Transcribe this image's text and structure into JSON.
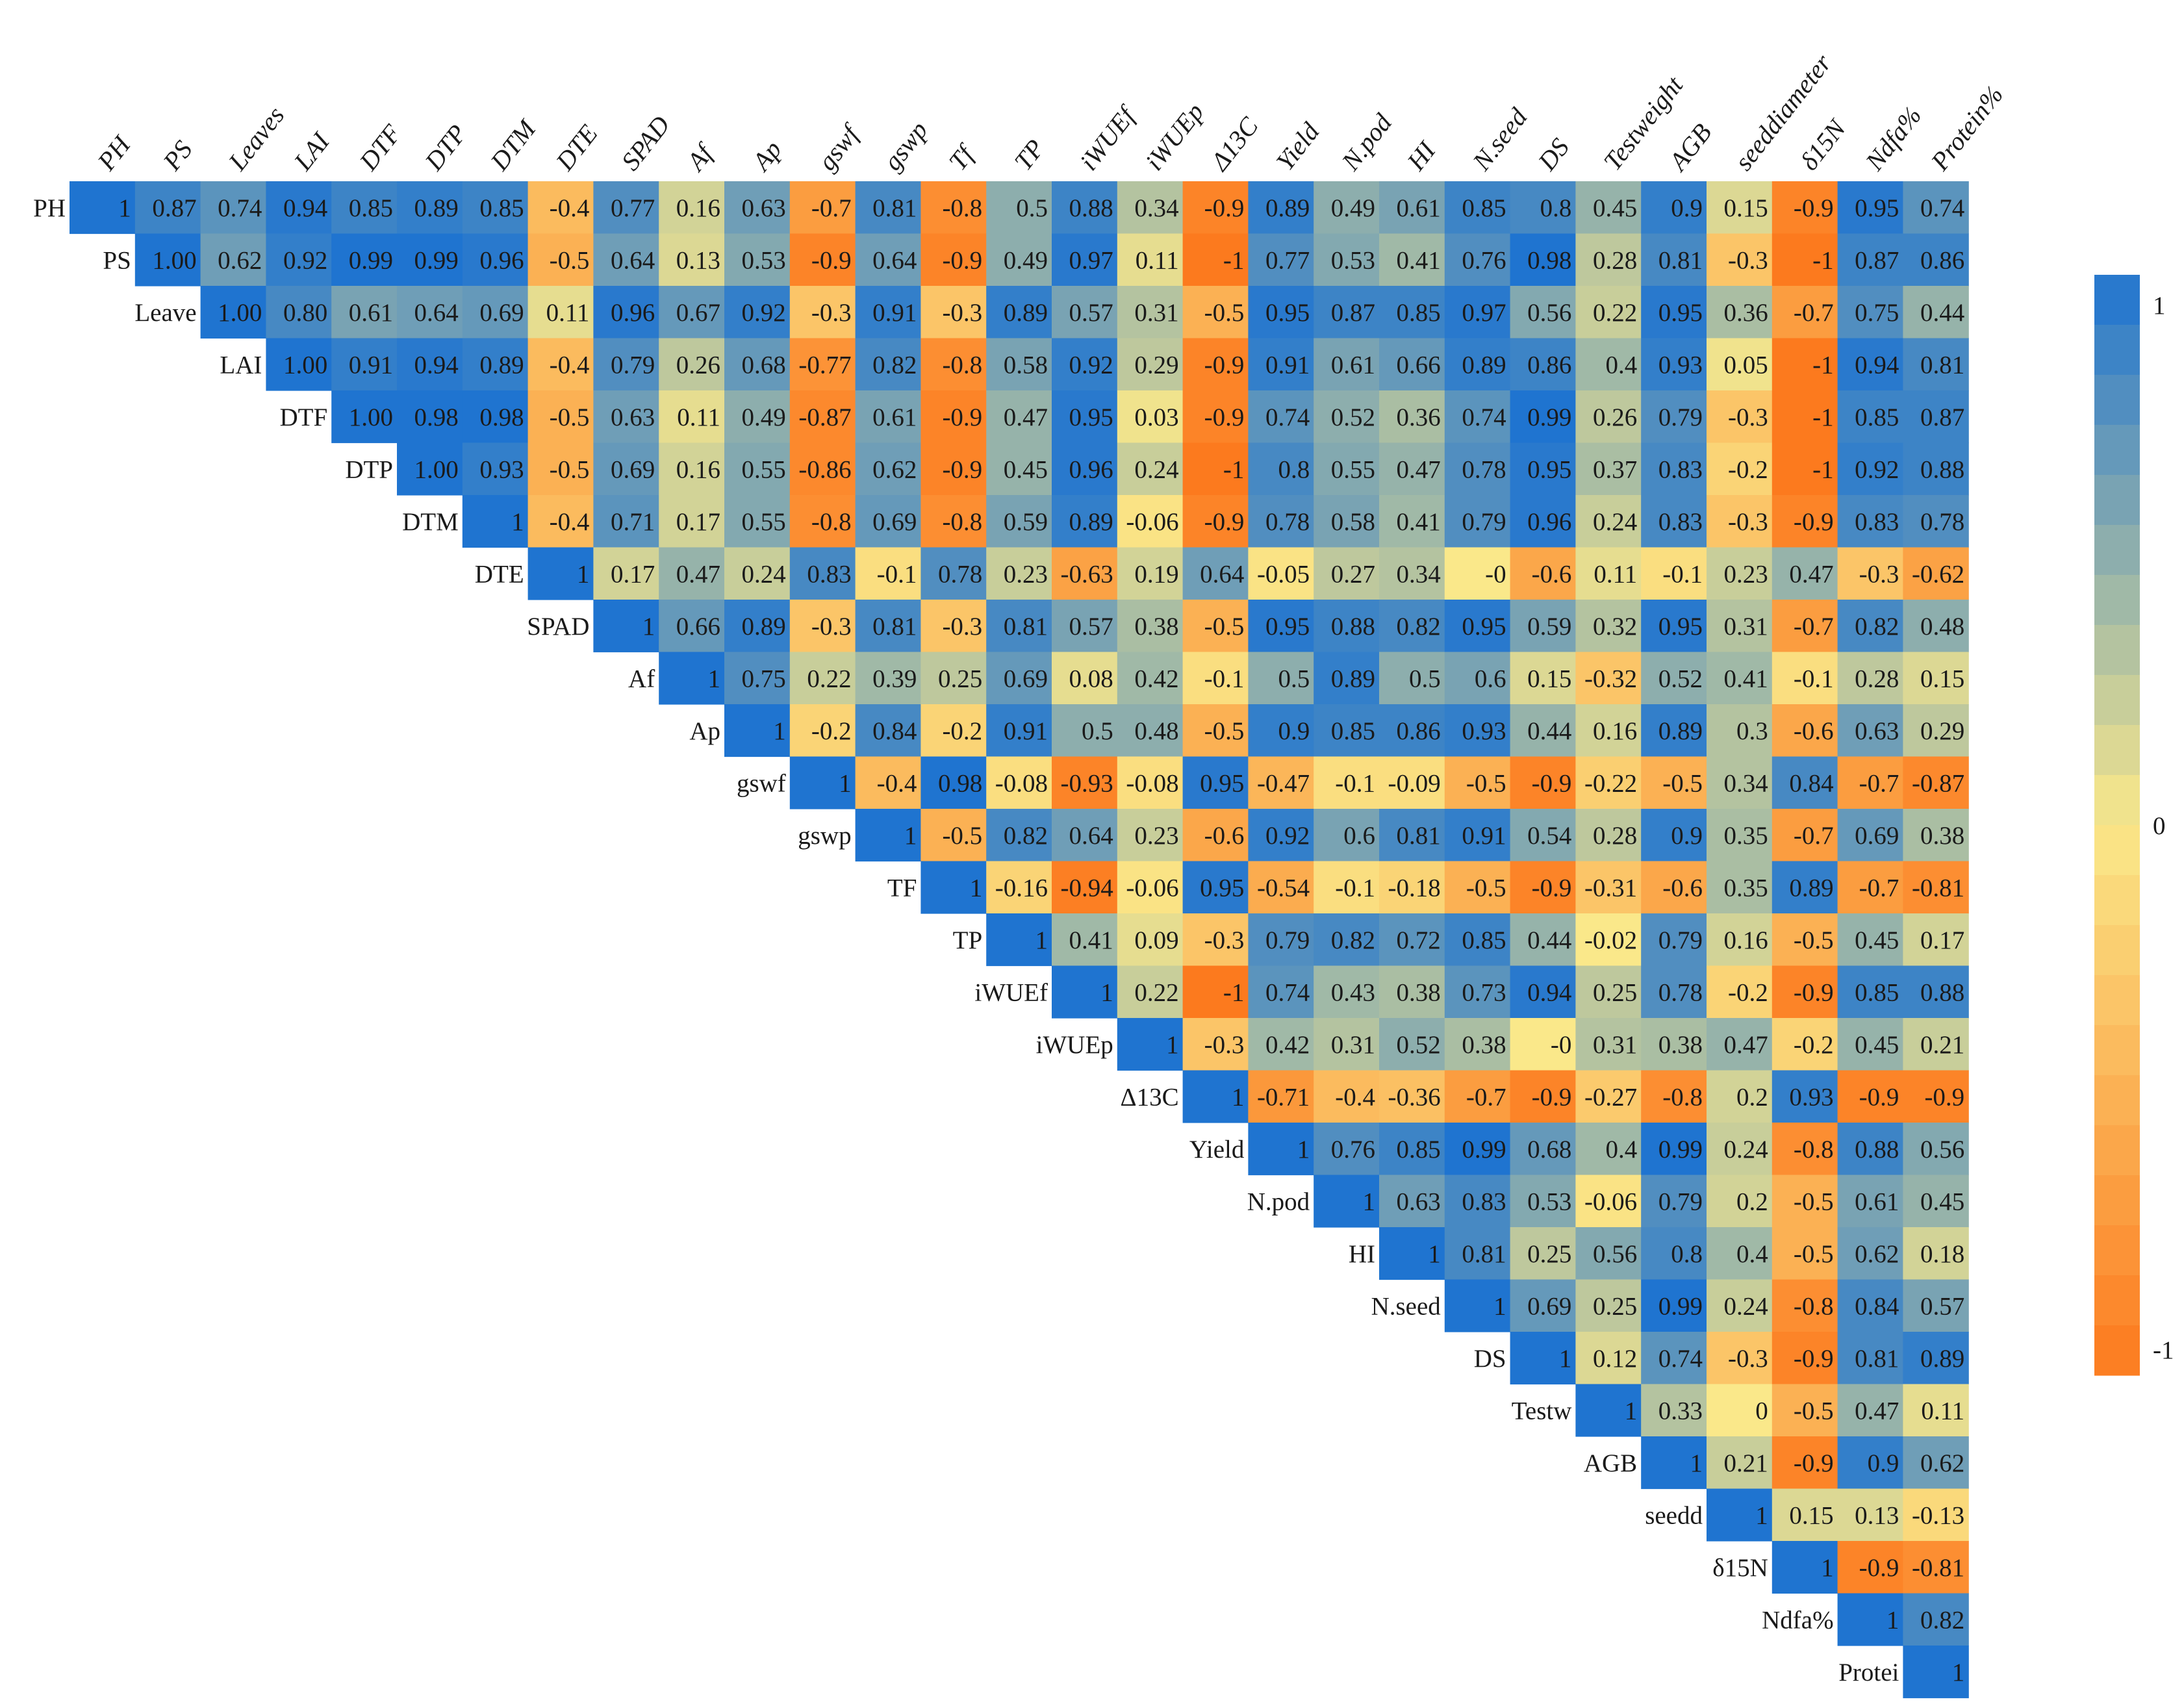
{
  "chart_data": {
    "type": "heatmap",
    "title": "",
    "column_labels": [
      "PH",
      "PS",
      "Leaves",
      "LAI",
      "DTF",
      "DTP",
      "DTM",
      "DTE",
      "SPAD",
      "Af",
      "Ap",
      "gswf",
      "gswp",
      "Tf",
      "TP",
      "iWUEf",
      "iWUEp",
      "Δ13C",
      "Yield",
      "N.pod",
      "HI",
      "N.seed",
      "DS",
      "Testweight",
      "AGB",
      "seeddiameter",
      "δ15N",
      "Ndfa%",
      "Protein%"
    ],
    "row_labels": [
      "PH",
      "PS",
      "Leave",
      "LAI",
      "DTF",
      "DTP",
      "DTM",
      "DTE",
      "SPAD",
      "Af",
      "Ap",
      "gswf",
      "gswp",
      "TF",
      "TP",
      "iWUEf",
      "iWUEp",
      "Δ13C",
      "Yield",
      "N.pod",
      "HI",
      "N.seed",
      "DS",
      "Testw",
      "AGB",
      "seedd",
      "δ15N",
      "Ndfa%",
      "Protei"
    ],
    "rows": [
      [
        "1",
        "0.87",
        "0.74",
        "0.94",
        "0.85",
        "0.89",
        "0.85",
        "-0.4",
        "0.77",
        "0.16",
        "0.63",
        "-0.7",
        "0.81",
        "-0.8",
        "0.5",
        "0.88",
        "0.34",
        "-0.9",
        "0.89",
        "0.49",
        "0.61",
        "0.85",
        "0.8",
        "0.45",
        "0.9",
        "0.15",
        "-0.9",
        "0.95",
        "0.74"
      ],
      [
        "1.00",
        "0.62",
        "0.92",
        "0.99",
        "0.99",
        "0.96",
        "-0.5",
        "0.64",
        "0.13",
        "0.53",
        "-0.9",
        "0.64",
        "-0.9",
        "0.49",
        "0.97",
        "0.11",
        "-1",
        "0.77",
        "0.53",
        "0.41",
        "0.76",
        "0.98",
        "0.28",
        "0.81",
        "-0.3",
        "-1",
        "0.87",
        "0.86"
      ],
      [
        "1.00",
        "0.80",
        "0.61",
        "0.64",
        "0.69",
        "0.11",
        "0.96",
        "0.67",
        "0.92",
        "-0.3",
        "0.91",
        "-0.3",
        "0.89",
        "0.57",
        "0.31",
        "-0.5",
        "0.95",
        "0.87",
        "0.85",
        "0.97",
        "0.56",
        "0.22",
        "0.95",
        "0.36",
        "-0.7",
        "0.75",
        "0.44"
      ],
      [
        "1.00",
        "0.91",
        "0.94",
        "0.89",
        "-0.4",
        "0.79",
        "0.26",
        "0.68",
        "-0.77",
        "0.82",
        "-0.8",
        "0.58",
        "0.92",
        "0.29",
        "-0.9",
        "0.91",
        "0.61",
        "0.66",
        "0.89",
        "0.86",
        "0.4",
        "0.93",
        "0.05",
        "-1",
        "0.94",
        "0.81"
      ],
      [
        "1.00",
        "0.98",
        "0.98",
        "-0.5",
        "0.63",
        "0.11",
        "0.49",
        "-0.87",
        "0.61",
        "-0.9",
        "0.47",
        "0.95",
        "0.03",
        "-0.9",
        "0.74",
        "0.52",
        "0.36",
        "0.74",
        "0.99",
        "0.26",
        "0.79",
        "-0.3",
        "-1",
        "0.85",
        "0.87"
      ],
      [
        "1.00",
        "0.93",
        "-0.5",
        "0.69",
        "0.16",
        "0.55",
        "-0.86",
        "0.62",
        "-0.9",
        "0.45",
        "0.96",
        "0.24",
        "-1",
        "0.8",
        "0.55",
        "0.47",
        "0.78",
        "0.95",
        "0.37",
        "0.83",
        "-0.2",
        "-1",
        "0.92",
        "0.88"
      ],
      [
        "1",
        "-0.4",
        "0.71",
        "0.17",
        "0.55",
        "-0.8",
        "0.69",
        "-0.8",
        "0.59",
        "0.89",
        "-0.06",
        "-0.9",
        "0.78",
        "0.58",
        "0.41",
        "0.79",
        "0.96",
        "0.24",
        "0.83",
        "-0.3",
        "-0.9",
        "0.83",
        "0.78"
      ],
      [
        "1",
        "0.17",
        "0.47",
        "0.24",
        "0.83",
        "-0.1",
        "0.78",
        "0.23",
        "-0.63",
        "0.19",
        "0.64",
        "-0.05",
        "0.27",
        "0.34",
        "-0",
        "-0.6",
        "0.11",
        "-0.1",
        "0.23",
        "0.47",
        "-0.3",
        "-0.62"
      ],
      [
        "1",
        "0.66",
        "0.89",
        "-0.3",
        "0.81",
        "-0.3",
        "0.81",
        "0.57",
        "0.38",
        "-0.5",
        "0.95",
        "0.88",
        "0.82",
        "0.95",
        "0.59",
        "0.32",
        "0.95",
        "0.31",
        "-0.7",
        "0.82",
        "0.48"
      ],
      [
        "1",
        "0.75",
        "0.22",
        "0.39",
        "0.25",
        "0.69",
        "0.08",
        "0.42",
        "-0.1",
        "0.5",
        "0.89",
        "0.5",
        "0.6",
        "0.15",
        "-0.32",
        "0.52",
        "0.41",
        "-0.1",
        "0.28",
        "0.15"
      ],
      [
        "1",
        "-0.2",
        "0.84",
        "-0.2",
        "0.91",
        "0.5",
        "0.48",
        "-0.5",
        "0.9",
        "0.85",
        "0.86",
        "0.93",
        "0.44",
        "0.16",
        "0.89",
        "0.3",
        "-0.6",
        "0.63",
        "0.29"
      ],
      [
        "1",
        "-0.4",
        "0.98",
        "-0.08",
        "-0.93",
        "-0.08",
        "0.95",
        "-0.47",
        "-0.1",
        "-0.09",
        "-0.5",
        "-0.9",
        "-0.22",
        "-0.5",
        "0.34",
        "0.84",
        "-0.7",
        "-0.87"
      ],
      [
        "1",
        "-0.5",
        "0.82",
        "0.64",
        "0.23",
        "-0.6",
        "0.92",
        "0.6",
        "0.81",
        "0.91",
        "0.54",
        "0.28",
        "0.9",
        "0.35",
        "-0.7",
        "0.69",
        "0.38"
      ],
      [
        "1",
        "-0.16",
        "-0.94",
        "-0.06",
        "0.95",
        "-0.54",
        "-0.1",
        "-0.18",
        "-0.5",
        "-0.9",
        "-0.31",
        "-0.6",
        "0.35",
        "0.89",
        "-0.7",
        "-0.81"
      ],
      [
        "1",
        "0.41",
        "0.09",
        "-0.3",
        "0.79",
        "0.82",
        "0.72",
        "0.85",
        "0.44",
        "-0.02",
        "0.79",
        "0.16",
        "-0.5",
        "0.45",
        "0.17"
      ],
      [
        "1",
        "0.22",
        "-1",
        "0.74",
        "0.43",
        "0.38",
        "0.73",
        "0.94",
        "0.25",
        "0.78",
        "-0.2",
        "-0.9",
        "0.85",
        "0.88"
      ],
      [
        "1",
        "-0.3",
        "0.42",
        "0.31",
        "0.52",
        "0.38",
        "-0",
        "0.31",
        "0.38",
        "0.47",
        "-0.2",
        "0.45",
        "0.21"
      ],
      [
        "1",
        "-0.71",
        "-0.4",
        "-0.36",
        "-0.7",
        "-0.9",
        "-0.27",
        "-0.8",
        "0.2",
        "0.93",
        "-0.9",
        "-0.9"
      ],
      [
        "1",
        "0.76",
        "0.85",
        "0.99",
        "0.68",
        "0.4",
        "0.99",
        "0.24",
        "-0.8",
        "0.88",
        "0.56"
      ],
      [
        "1",
        "0.63",
        "0.83",
        "0.53",
        "-0.06",
        "0.79",
        "0.2",
        "-0.5",
        "0.61",
        "0.45"
      ],
      [
        "1",
        "0.81",
        "0.25",
        "0.56",
        "0.8",
        "0.4",
        "-0.5",
        "0.62",
        "0.18"
      ],
      [
        "1",
        "0.69",
        "0.25",
        "0.99",
        "0.24",
        "-0.8",
        "0.84",
        "0.57"
      ],
      [
        "1",
        "0.12",
        "0.74",
        "-0.3",
        "-0.9",
        "0.81",
        "0.89"
      ],
      [
        "1",
        "0.33",
        "0",
        "-0.5",
        "0.47",
        "0.11"
      ],
      [
        "1",
        "0.21",
        "-0.9",
        "0.9",
        "0.62"
      ],
      [
        "1",
        "0.15",
        "0.13",
        "-0.13"
      ],
      [
        "1",
        "-0.9",
        "-0.81"
      ],
      [
        "1",
        "0.82"
      ],
      [
        "1"
      ]
    ],
    "colorbar": {
      "min": -1,
      "max": 1,
      "tick_labels": [
        "1",
        "0",
        "-1"
      ]
    },
    "colors": {
      "positive": "#1f74d0",
      "mid": "#fae88a",
      "negative": "#fc7a1e",
      "text": "#1a1a1a"
    }
  }
}
